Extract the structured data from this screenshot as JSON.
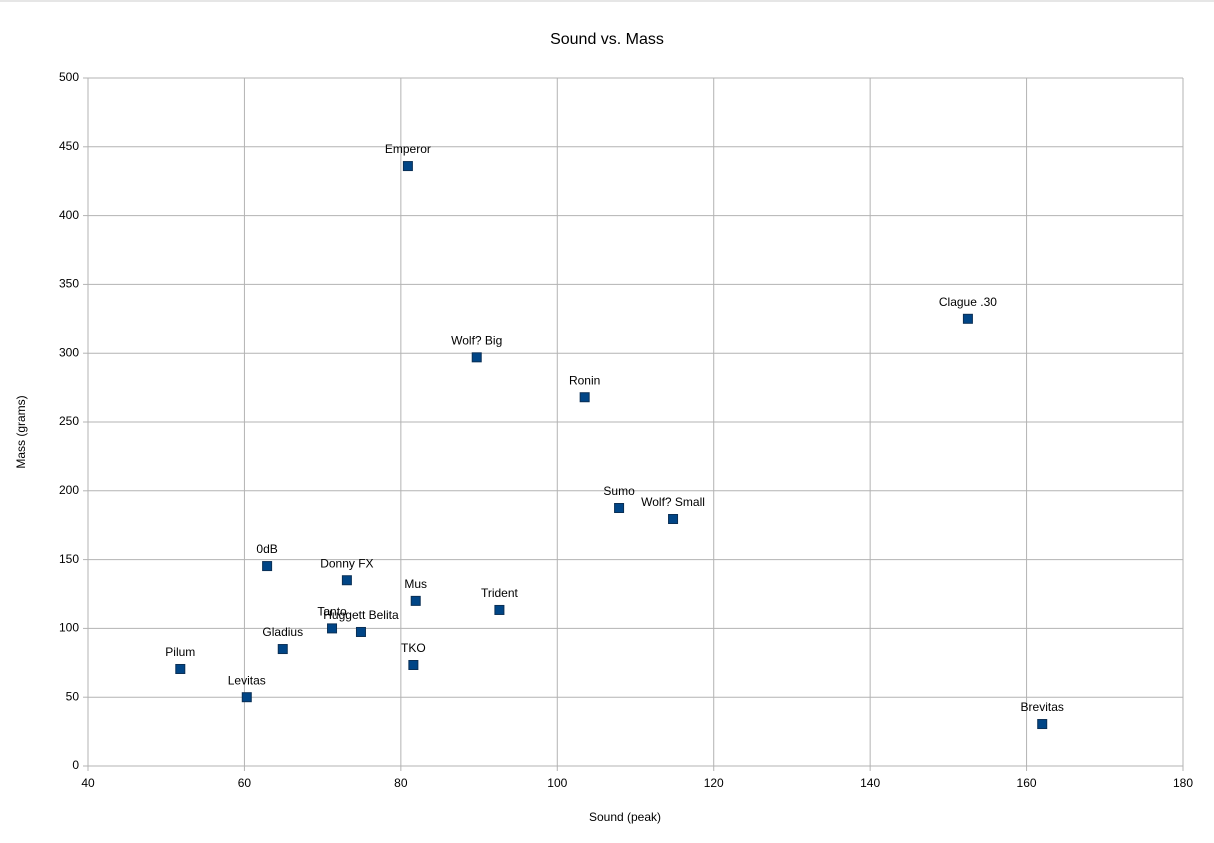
{
  "chart_data": {
    "type": "scatter",
    "title": "Sound vs. Mass",
    "x_label": "Sound (peak)",
    "y_label": "Mass (grams)",
    "labels": [
      "Emperor",
      "Clague .30",
      "Wolf? Big",
      "Ronin",
      "Sumo",
      "Wolf? Small",
      "0dB",
      "Donny FX",
      "Mus",
      "Trident",
      "Tanto",
      "Huggett Belita",
      "Gladius",
      "TKO",
      "Pilum",
      "Levitas",
      "Brevitas"
    ],
    "x": [
      80.9,
      152.5,
      89.7,
      103.5,
      107.9,
      114.8,
      62.9,
      73.1,
      81.9,
      92.6,
      71.2,
      74.9,
      64.9,
      81.6,
      51.8,
      60.3,
      162
    ],
    "values": [
      436,
      325,
      297,
      268,
      187.5,
      179.5,
      145.3,
      135,
      120,
      113.4,
      100,
      97.4,
      85,
      73.4,
      70.5,
      50,
      30.5
    ],
    "color": "#004586",
    "xlim": [
      40,
      180
    ],
    "xticks": [
      40,
      60,
      80,
      100,
      120,
      140,
      160,
      180
    ],
    "ylim": [
      0,
      500
    ],
    "yticks": [
      0,
      50,
      100,
      150,
      200,
      250,
      300,
      350,
      400,
      450,
      500
    ],
    "grid": true
  }
}
